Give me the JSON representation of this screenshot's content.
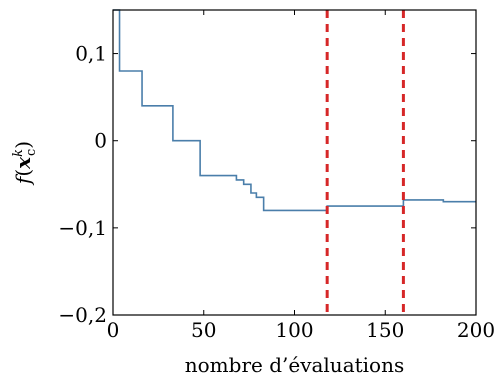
{
  "chart_data": {
    "type": "line",
    "line_style": "step",
    "xlabel": "nombre d’évaluations",
    "ylabel": "f(x_c^k)",
    "xlim": [
      0,
      200
    ],
    "ylim": [
      -0.2,
      0.15
    ],
    "x_ticks": [
      0,
      50,
      100,
      150,
      200
    ],
    "x_tick_labels": [
      "0",
      "50",
      "100",
      "150",
      "200"
    ],
    "y_ticks": [
      -0.2,
      -0.1,
      0,
      0.1
    ],
    "y_tick_labels": [
      "−0,2",
      "−0,1",
      "0",
      "0,1"
    ],
    "grid": false,
    "series": [
      {
        "color": "#4a7eaa",
        "x": [
          0,
          3.6,
          3.6,
          16,
          16,
          33,
          33,
          48,
          48,
          68,
          68,
          72,
          72,
          76,
          76,
          79,
          79,
          83,
          83,
          87,
          87,
          118,
          118,
          160,
          160,
          182,
          182,
          200
        ],
        "y": [
          0.15,
          0.15,
          0.08,
          0.08,
          0.04,
          0.04,
          0.0,
          0.0,
          -0.04,
          -0.04,
          -0.045,
          -0.045,
          -0.05,
          -0.05,
          -0.06,
          -0.06,
          -0.065,
          -0.065,
          -0.08,
          -0.08,
          -0.08,
          -0.08,
          -0.075,
          -0.075,
          -0.068,
          -0.068,
          -0.07,
          -0.07
        ]
      }
    ],
    "vertical_lines": [
      {
        "x": 118,
        "color": "#d62728",
        "style": "dashed"
      },
      {
        "x": 160,
        "color": "#d62728",
        "style": "dashed"
      }
    ]
  }
}
